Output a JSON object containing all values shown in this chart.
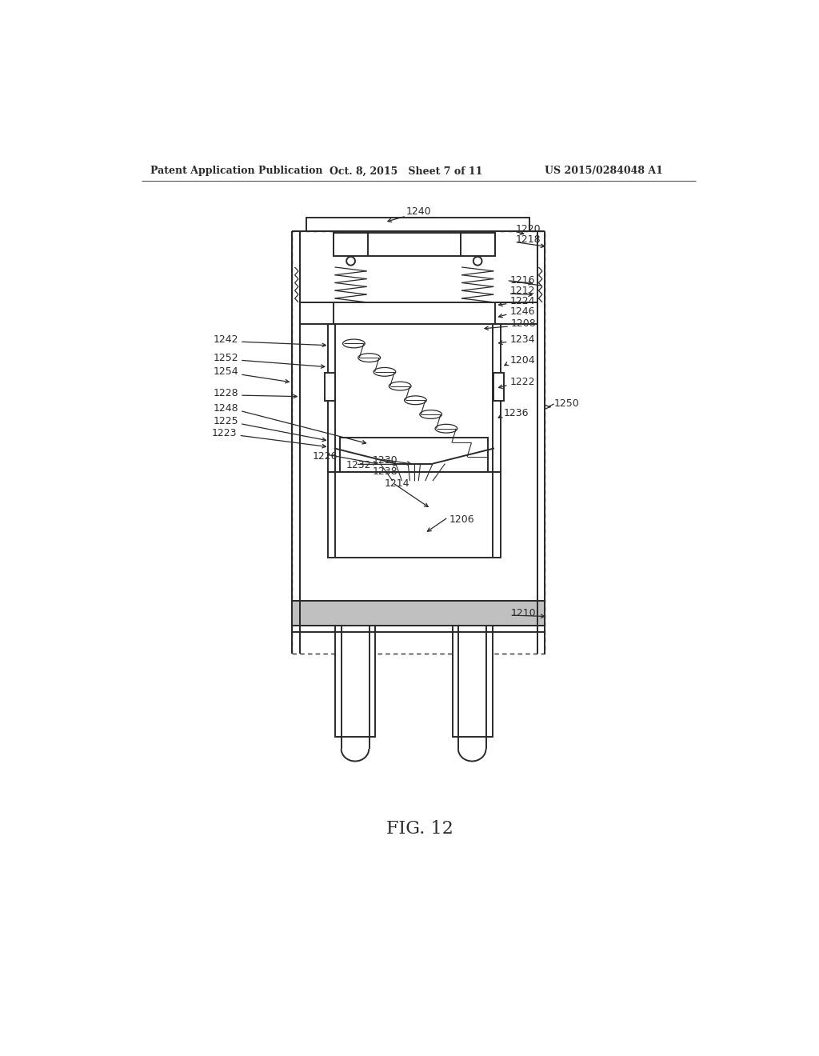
{
  "bg_color": "#ffffff",
  "line_color": "#2a2a2a",
  "header_left": "Patent Application Publication",
  "header_mid": "Oct. 8, 2015   Sheet 7 of 11",
  "header_right": "US 2015/0284048 A1",
  "fig_label": "FIG. 12",
  "lw_main": 1.4,
  "lw_thin": 0.9,
  "lw_dashed": 0.8
}
